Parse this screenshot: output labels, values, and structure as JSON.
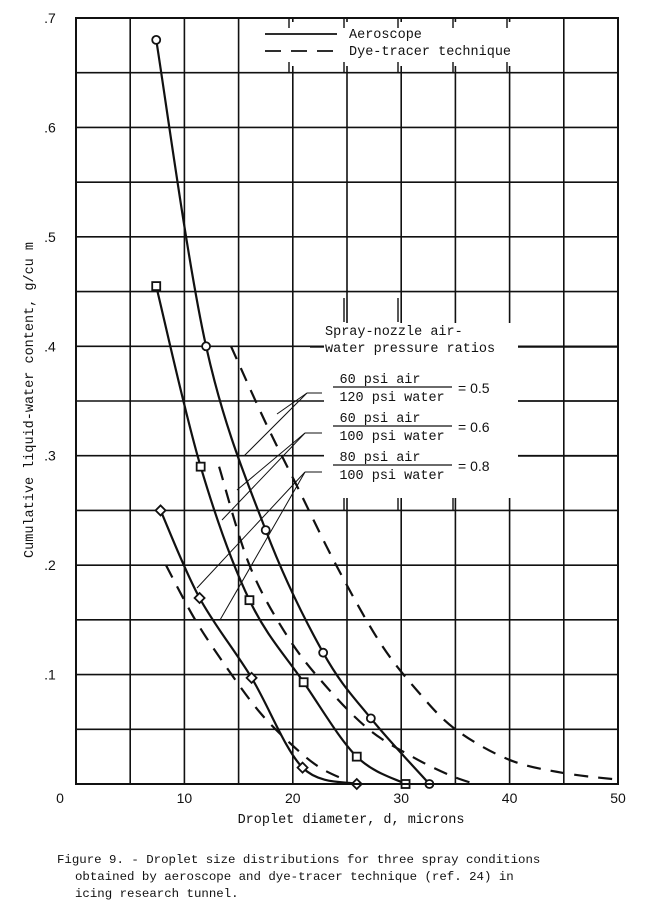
{
  "chart_data": {
    "type": "line",
    "title": "Figure 9. - Droplet size distributions for three spray conditions obtained by aeroscope and dye-tracer technique (ref. 24) in icing research tunnel.",
    "xlabel": "Droplet diameter, d, microns",
    "ylabel": "Cumulative liquid-water content, g/cu m",
    "xlim": [
      0,
      50
    ],
    "ylim": [
      0,
      0.7
    ],
    "x_ticks": [
      0,
      10,
      20,
      30,
      40,
      50
    ],
    "x_tick_labels": [
      "0",
      "10",
      "20",
      "30",
      "40",
      "50"
    ],
    "y_ticks": [
      0.1,
      0.2,
      0.3,
      0.4,
      0.5,
      0.6,
      0.7
    ],
    "y_tick_labels": [
      ".1",
      ".2",
      ".3",
      ".4",
      ".5",
      ".6",
      ".7"
    ],
    "grid": true,
    "grid_x_step": 5,
    "grid_y_step": 0.05,
    "legend": {
      "position": "top-right",
      "entries": [
        {
          "label": "Aeroscope",
          "style": "solid"
        },
        {
          "label": "Dye-tracer technique",
          "style": "dashed"
        }
      ]
    },
    "annotation": {
      "heading_line1": "Spray-nozzle air-",
      "heading_line2": "water pressure ratios",
      "ratios": [
        {
          "numerator": "60 psi air",
          "denominator": "120 psi water",
          "value": "= 0.5"
        },
        {
          "numerator": "60 psi air",
          "denominator": "100 psi water",
          "value": "= 0.6"
        },
        {
          "numerator": "80 psi air",
          "denominator": "100 psi water",
          "value": "= 0.8"
        }
      ]
    },
    "series": [
      {
        "name": "Aeroscope, 60 psi air / 120 psi water = 0.5",
        "method": "Aeroscope",
        "style": "solid",
        "marker": "circle",
        "points": [
          [
            7.4,
            0.68
          ],
          [
            12.0,
            0.4
          ],
          [
            17.5,
            0.232
          ],
          [
            22.8,
            0.12
          ],
          [
            27.2,
            0.06
          ],
          [
            32.6,
            0.0
          ]
        ]
      },
      {
        "name": "Aeroscope, 60 psi air / 100 psi water = 0.6",
        "method": "Aeroscope",
        "style": "solid",
        "marker": "square",
        "points": [
          [
            7.4,
            0.455
          ],
          [
            11.5,
            0.29
          ],
          [
            16.0,
            0.168
          ],
          [
            21.0,
            0.093
          ],
          [
            25.9,
            0.025
          ],
          [
            30.4,
            0.0
          ]
        ]
      },
      {
        "name": "Aeroscope, 80 psi air / 100 psi water = 0.8",
        "method": "Aeroscope",
        "style": "solid",
        "marker": "diamond",
        "points": [
          [
            7.8,
            0.25
          ],
          [
            11.4,
            0.17
          ],
          [
            16.2,
            0.097
          ],
          [
            20.9,
            0.015
          ],
          [
            25.9,
            0.0
          ]
        ]
      },
      {
        "name": "Dye-tracer, 60 psi air / 120 psi water = 0.5",
        "method": "Dye-tracer technique",
        "style": "dashed",
        "marker": "none",
        "points": [
          [
            14.3,
            0.4
          ],
          [
            17.5,
            0.33
          ],
          [
            20.5,
            0.27
          ],
          [
            24.0,
            0.2
          ],
          [
            28.0,
            0.13
          ],
          [
            31.5,
            0.085
          ],
          [
            35.0,
            0.05
          ],
          [
            40.0,
            0.022
          ],
          [
            45.0,
            0.01
          ],
          [
            50.0,
            0.004
          ]
        ]
      },
      {
        "name": "Dye-tracer, 60 psi air / 100 psi water = 0.6",
        "method": "Dye-tracer technique",
        "style": "dashed",
        "marker": "none",
        "points": [
          [
            13.2,
            0.29
          ],
          [
            16.0,
            0.2
          ],
          [
            19.5,
            0.135
          ],
          [
            23.0,
            0.09
          ],
          [
            27.0,
            0.05
          ],
          [
            31.0,
            0.025
          ],
          [
            34.5,
            0.008
          ],
          [
            36.8,
            0.0
          ]
        ]
      },
      {
        "name": "Dye-tracer, 80 psi air / 100 psi water = 0.8",
        "method": "Dye-tracer technique",
        "style": "dashed",
        "marker": "none",
        "points": [
          [
            8.3,
            0.2
          ],
          [
            11.0,
            0.15
          ],
          [
            14.0,
            0.105
          ],
          [
            17.0,
            0.065
          ],
          [
            20.0,
            0.035
          ],
          [
            22.5,
            0.015
          ],
          [
            25.0,
            0.003
          ]
        ]
      }
    ]
  },
  "caption": {
    "line1": "Figure 9. - Droplet size distributions for three spray conditions",
    "line2": "obtained by aeroscope and dye-tracer technique (ref. 24) in",
    "line3": "icing research tunnel."
  }
}
